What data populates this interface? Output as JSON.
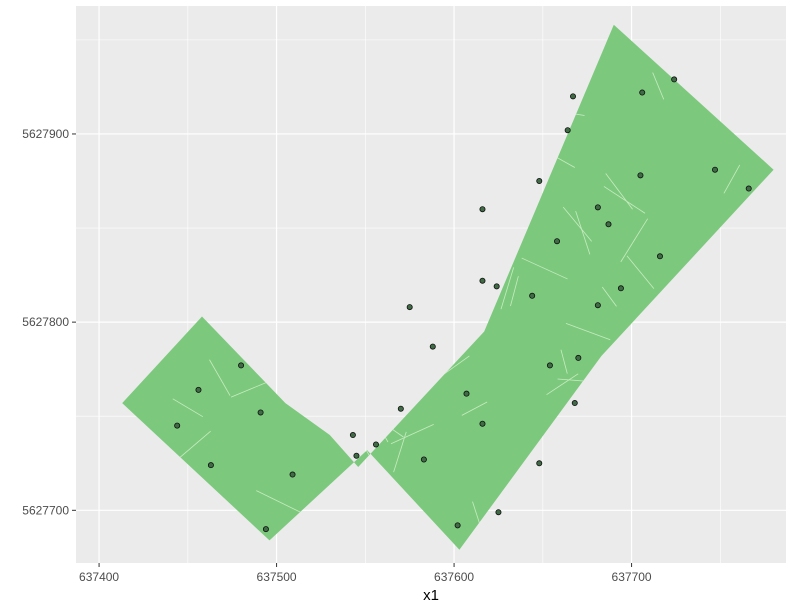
{
  "chart_data": {
    "type": "scatter",
    "title": "",
    "xlabel": "x1",
    "ylabel": "",
    "xlim": [
      637387,
      637787
    ],
    "ylim": [
      5627672,
      5627968
    ],
    "x_ticks": [
      637400,
      637500,
      637600,
      637700
    ],
    "y_ticks": [
      5627700,
      5627800,
      5627900
    ],
    "grid": true,
    "colors": {
      "panel_background": "#ebebeb",
      "gridline": "#ffffff",
      "fill": "#7cc97e",
      "cell_border": "#c8ebc0",
      "point_fill": "#3f6b45",
      "point_stroke": "#111111"
    },
    "regions": [
      {
        "description": "sampled area polygon (two rotated rectangles joined)",
        "polygon": [
          [
            637413,
            5627757
          ],
          [
            637458,
            5627803
          ],
          [
            637505,
            5627757
          ],
          [
            637530,
            5627740
          ],
          [
            637546,
            5627723
          ],
          [
            637617,
            5627795
          ],
          [
            637690,
            5627958
          ],
          [
            637780,
            5627881
          ],
          [
            637683,
            5627782
          ],
          [
            637603,
            5627679
          ],
          [
            637551,
            5627732
          ],
          [
            637496,
            5627684
          ]
        ]
      }
    ],
    "points": [
      {
        "x": 637706,
        "y": 5627922
      },
      {
        "x": 637724,
        "y": 5627929
      },
      {
        "x": 637667,
        "y": 5627920
      },
      {
        "x": 637664,
        "y": 5627902
      },
      {
        "x": 637747,
        "y": 5627881
      },
      {
        "x": 637766,
        "y": 5627871
      },
      {
        "x": 637705,
        "y": 5627878
      },
      {
        "x": 637648,
        "y": 5627875
      },
      {
        "x": 637681,
        "y": 5627861
      },
      {
        "x": 637616,
        "y": 5627860
      },
      {
        "x": 637687,
        "y": 5627852
      },
      {
        "x": 637658,
        "y": 5627843
      },
      {
        "x": 637716,
        "y": 5627835
      },
      {
        "x": 637616,
        "y": 5627822
      },
      {
        "x": 637624,
        "y": 5627819
      },
      {
        "x": 637694,
        "y": 5627818
      },
      {
        "x": 637644,
        "y": 5627814
      },
      {
        "x": 637681,
        "y": 5627809
      },
      {
        "x": 637575,
        "y": 5627808
      },
      {
        "x": 637588,
        "y": 5627787
      },
      {
        "x": 637670,
        "y": 5627781
      },
      {
        "x": 637480,
        "y": 5627777
      },
      {
        "x": 637654,
        "y": 5627777
      },
      {
        "x": 637456,
        "y": 5627764
      },
      {
        "x": 637607,
        "y": 5627762
      },
      {
        "x": 637668,
        "y": 5627757
      },
      {
        "x": 637570,
        "y": 5627754
      },
      {
        "x": 637491,
        "y": 5627752
      },
      {
        "x": 637616,
        "y": 5627746
      },
      {
        "x": 637444,
        "y": 5627745
      },
      {
        "x": 637543,
        "y": 5627740
      },
      {
        "x": 637556,
        "y": 5627735
      },
      {
        "x": 637545,
        "y": 5627729
      },
      {
        "x": 637583,
        "y": 5627727
      },
      {
        "x": 637648,
        "y": 5627725
      },
      {
        "x": 637463,
        "y": 5627724
      },
      {
        "x": 637509,
        "y": 5627719
      },
      {
        "x": 637625,
        "y": 5627699
      },
      {
        "x": 637602,
        "y": 5627692
      },
      {
        "x": 637494,
        "y": 5627690
      }
    ]
  }
}
